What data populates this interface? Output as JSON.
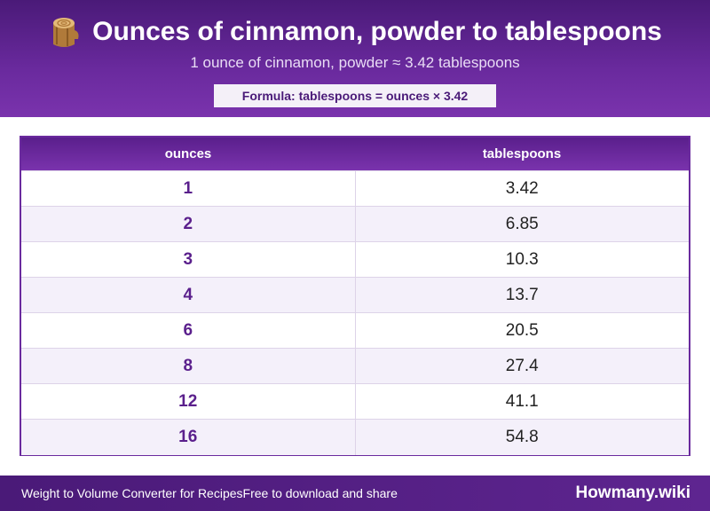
{
  "header": {
    "icon": "wood-log-icon",
    "title": "Ounces of cinnamon, powder to tablespoons",
    "subtitle": "1 ounce of cinnamon, powder ≈ 3.42 tablespoons",
    "formula": "Formula: tablespoons = ounces × 3.42"
  },
  "table": {
    "columns": [
      "ounces",
      "tablespoons"
    ],
    "rows": [
      [
        "1",
        "3.42"
      ],
      [
        "2",
        "6.85"
      ],
      [
        "3",
        "10.3"
      ],
      [
        "4",
        "13.7"
      ],
      [
        "6",
        "20.5"
      ],
      [
        "8",
        "27.4"
      ],
      [
        "12",
        "41.1"
      ],
      [
        "16",
        "54.8"
      ]
    ]
  },
  "footer": {
    "left_text_1": "Weight to Volume Converter for Recipes",
    "left_text_2": "Free to download and share",
    "brand": "Howmany.wiki"
  },
  "colors": {
    "primary": "#5a1f8c",
    "accent": "#7a33ad",
    "row_alt": "#f4f0fa"
  }
}
